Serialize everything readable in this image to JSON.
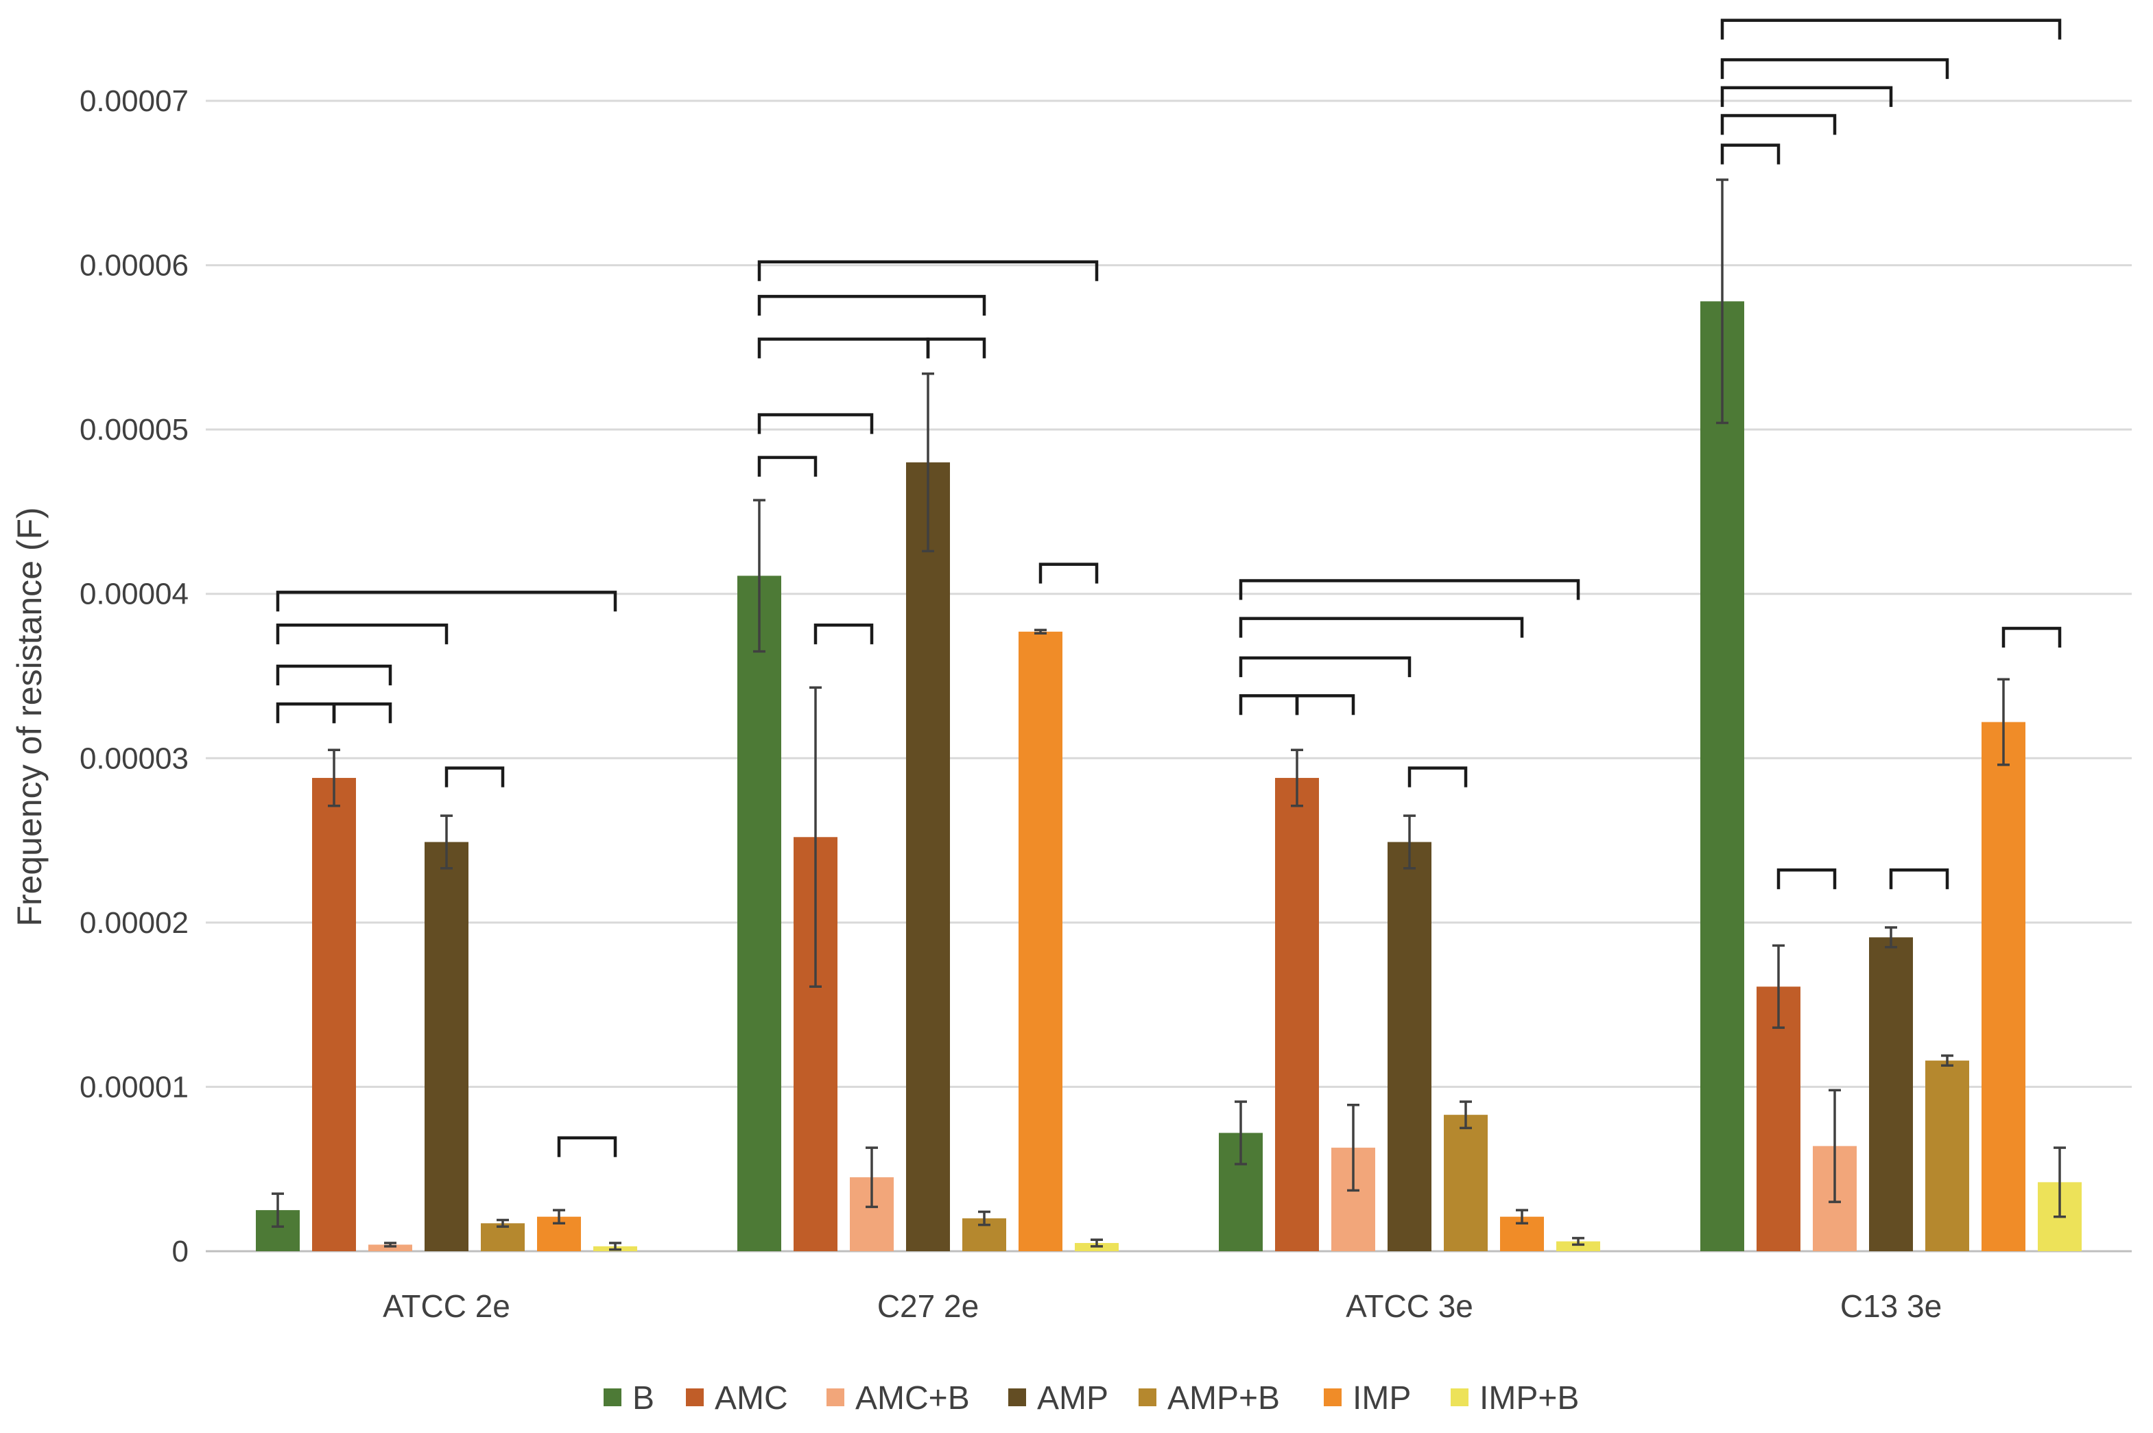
{
  "chart_data": {
    "type": "bar",
    "title": "",
    "xlabel": "",
    "ylabel": "Frequency of resistance (F)",
    "ylim": [
      0,
      7e-05
    ],
    "yticks": [
      0,
      1e-05,
      2e-05,
      3e-05,
      4e-05,
      5e-05,
      6e-05,
      7e-05
    ],
    "ytick_labels": [
      "0",
      "0.00001",
      "0.00002",
      "0.00003",
      "0.00004",
      "0.00005",
      "0.00006",
      "0.00007"
    ],
    "grid": true,
    "legend_position": "bottom",
    "categories": [
      "ATCC 2e",
      "C27 2e",
      "ATCC 3e",
      "C13 3e"
    ],
    "series": [
      {
        "name": "B",
        "color": "#4d7a36",
        "values": [
          2.5e-06,
          4.11e-05,
          7.2e-06,
          5.78e-05
        ],
        "errors": [
          1e-06,
          4.6e-06,
          1.9e-06,
          7.4e-06
        ]
      },
      {
        "name": "AMC",
        "color": "#c05d28",
        "values": [
          2.88e-05,
          2.52e-05,
          2.88e-05,
          1.61e-05
        ],
        "errors": [
          1.7e-06,
          9.1e-06,
          1.7e-06,
          2.5e-06
        ]
      },
      {
        "name": "AMC+B",
        "color": "#f2a67a",
        "values": [
          4e-07,
          4.5e-06,
          6.3e-06,
          6.4e-06
        ],
        "errors": [
          1e-07,
          1.8e-06,
          2.6e-06,
          3.4e-06
        ]
      },
      {
        "name": "AMP",
        "color": "#634d23",
        "values": [
          2.49e-05,
          4.8e-05,
          2.49e-05,
          1.91e-05
        ],
        "errors": [
          1.6e-06,
          5.4e-06,
          1.6e-06,
          6e-07
        ]
      },
      {
        "name": "AMP+B",
        "color": "#b5882e",
        "values": [
          1.7e-06,
          2e-06,
          8.3e-06,
          1.16e-05
        ],
        "errors": [
          2e-07,
          4e-07,
          8e-07,
          3e-07
        ]
      },
      {
        "name": "IMP",
        "color": "#f08c28",
        "values": [
          2.1e-06,
          3.77e-05,
          2.1e-06,
          3.22e-05
        ],
        "errors": [
          4e-07,
          1e-07,
          4e-07,
          2.6e-06
        ]
      },
      {
        "name": "IMP+B",
        "color": "#ede259",
        "values": [
          3e-07,
          5e-07,
          6e-07,
          4.2e-06
        ],
        "errors": [
          2e-07,
          2e-07,
          2e-07,
          2.1e-06
        ]
      }
    ],
    "significance_brackets": [
      {
        "category": 0,
        "from": 0,
        "to": 6,
        "y": 4.01e-05
      },
      {
        "category": 0,
        "from": 0,
        "to": 3,
        "y": 3.81e-05
      },
      {
        "category": 0,
        "from": 0,
        "to": 2,
        "y": 3.56e-05
      },
      {
        "category": 0,
        "from": 0,
        "to": 1,
        "y": 3.33e-05
      },
      {
        "category": 0,
        "from": 1,
        "to": 2,
        "y": 3.33e-05
      },
      {
        "category": 0,
        "from": 3,
        "to": 4,
        "y": 2.94e-05
      },
      {
        "category": 0,
        "from": 5,
        "to": 6,
        "y": 6.9e-06
      },
      {
        "category": 1,
        "from": 0,
        "to": 6,
        "y": 6.02e-05
      },
      {
        "category": 1,
        "from": 0,
        "to": 4,
        "y": 5.81e-05
      },
      {
        "category": 1,
        "from": 0,
        "to": 3,
        "y": 5.55e-05
      },
      {
        "category": 1,
        "from": 3,
        "to": 4,
        "y": 5.55e-05
      },
      {
        "category": 1,
        "from": 0,
        "to": 2,
        "y": 5.09e-05
      },
      {
        "category": 1,
        "from": 0,
        "to": 1,
        "y": 4.83e-05
      },
      {
        "category": 1,
        "from": 1,
        "to": 2,
        "y": 3.81e-05
      },
      {
        "category": 1,
        "from": 5,
        "to": 6,
        "y": 4.18e-05
      },
      {
        "category": 2,
        "from": 0,
        "to": 6,
        "y": 4.08e-05
      },
      {
        "category": 2,
        "from": 0,
        "to": 5,
        "y": 3.85e-05
      },
      {
        "category": 2,
        "from": 0,
        "to": 3,
        "y": 3.61e-05
      },
      {
        "category": 2,
        "from": 0,
        "to": 1,
        "y": 3.38e-05
      },
      {
        "category": 2,
        "from": 1,
        "to": 2,
        "y": 3.38e-05
      },
      {
        "category": 2,
        "from": 3,
        "to": 4,
        "y": 2.94e-05
      },
      {
        "category": 3,
        "from": 0,
        "to": 6,
        "y": 7.49e-05
      },
      {
        "category": 3,
        "from": 0,
        "to": 4,
        "y": 7.25e-05
      },
      {
        "category": 3,
        "from": 0,
        "to": 3,
        "y": 7.08e-05
      },
      {
        "category": 3,
        "from": 0,
        "to": 2,
        "y": 6.91e-05
      },
      {
        "category": 3,
        "from": 0,
        "to": 1,
        "y": 6.73e-05
      },
      {
        "category": 3,
        "from": 1,
        "to": 2,
        "y": 2.32e-05
      },
      {
        "category": 3,
        "from": 3,
        "to": 4,
        "y": 2.32e-05
      },
      {
        "category": 3,
        "from": 5,
        "to": 6,
        "y": 3.79e-05
      }
    ]
  }
}
